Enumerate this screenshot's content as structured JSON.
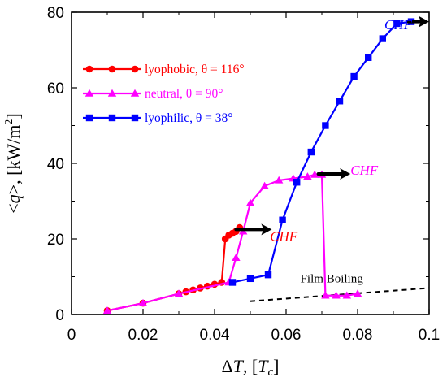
{
  "chart_data": {
    "type": "line",
    "xlabel": "ΔT, [T_c]",
    "ylabel": "<q>, [kW/m²]",
    "xlim": [
      0,
      0.1
    ],
    "ylim": [
      0,
      80
    ],
    "xticks": [
      0,
      0.02,
      0.04,
      0.06,
      0.08,
      0.1
    ],
    "yticks": [
      0,
      20,
      40,
      60,
      80
    ],
    "xtick_labels": [
      "0",
      "0.02",
      "0.04",
      "0.06",
      "0.08",
      "0.1"
    ],
    "ytick_labels": [
      "0",
      "20",
      "40",
      "60",
      "80"
    ],
    "grid": false,
    "legend_position": "upper-left",
    "series": [
      {
        "name": "lyophobic, θ = 116°",
        "color": "#ff0000",
        "marker": "circle",
        "x": [
          0.01,
          0.02,
          0.03,
          0.032,
          0.034,
          0.036,
          0.038,
          0.04,
          0.042,
          0.043,
          0.044,
          0.045,
          0.046,
          0.047
        ],
        "y": [
          1,
          3,
          5.5,
          6,
          6.5,
          7,
          7.5,
          8,
          8.5,
          20,
          21,
          21.5,
          22,
          23
        ]
      },
      {
        "name": "neutral, θ = 90°",
        "color": "#ff00ff",
        "marker": "triangle",
        "x": [
          0.01,
          0.02,
          0.03,
          0.044,
          0.046,
          0.048,
          0.05,
          0.054,
          0.058,
          0.062,
          0.066,
          0.068,
          0.07,
          0.071,
          0.074,
          0.077,
          0.08
        ],
        "y": [
          1,
          3,
          5.5,
          8.5,
          15,
          22,
          29.5,
          34,
          35.5,
          36,
          36.5,
          37,
          37,
          5,
          5,
          5,
          5.5
        ]
      },
      {
        "name": "lyophilic, θ = 38°",
        "color": "#0000ff",
        "marker": "square",
        "x": [
          0.045,
          0.05,
          0.055,
          0.059,
          0.063,
          0.067,
          0.071,
          0.075,
          0.079,
          0.083,
          0.087,
          0.091,
          0.095
        ],
        "y": [
          8.5,
          9.5,
          10.5,
          25,
          35,
          43,
          50,
          56.5,
          63,
          68,
          73,
          77,
          77.5
        ]
      }
    ],
    "trend_line": {
      "x": [
        0.05,
        0.1
      ],
      "y": [
        3.5,
        7
      ],
      "style": "dashed",
      "color": "#000000"
    },
    "annotations": [
      {
        "text": "CHF",
        "color": "#ff0000",
        "x": 0.0555,
        "y": 19.5,
        "arrow": {
          "from": [
            0.046,
            22.5
          ],
          "to": [
            0.056,
            22.5
          ]
        }
      },
      {
        "text": "CHF",
        "color": "#ff00ff",
        "x": 0.078,
        "y": 37,
        "arrow": {
          "from": [
            0.069,
            37.2
          ],
          "to": [
            0.078,
            37.2
          ]
        }
      },
      {
        "text": "CHF",
        "color": "#0000ff",
        "x": 0.0875,
        "y": 75.5,
        "arrow": {
          "from": [
            0.094,
            77.5
          ],
          "to": [
            0.1,
            77.5
          ]
        }
      },
      {
        "text": "Film Boiling",
        "color": "#000000",
        "x": 0.064,
        "y": 8.5
      }
    ]
  }
}
